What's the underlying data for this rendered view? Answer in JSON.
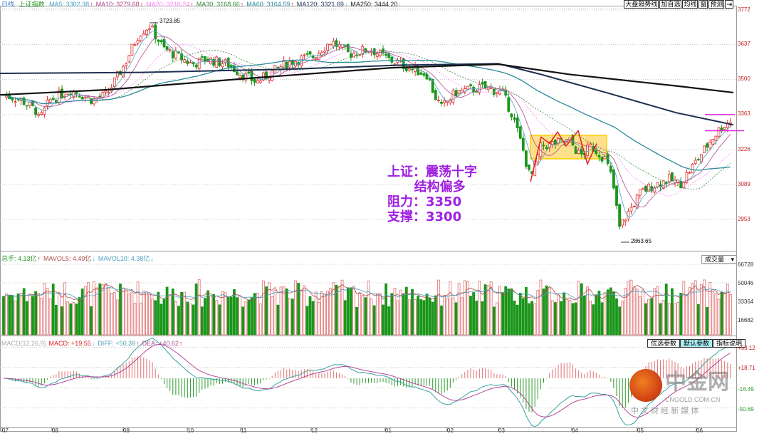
{
  "header": {
    "period": "日线",
    "index_name": "上证指数",
    "ma": [
      {
        "label": "MA5: 3302.38",
        "trend": "up",
        "color": "#4aa0c0"
      },
      {
        "label": "MA10: 3279.68",
        "trend": "up",
        "color": "#b04a8a"
      },
      {
        "label": "MA20: 3216.24",
        "trend": "up",
        "color": "#ff80ff"
      },
      {
        "label": "MA30: 3168.66",
        "trend": "up",
        "color": "#3a8a3a"
      },
      {
        "label": "MA60: 3164.59",
        "trend": "up",
        "color": "#2a8a9a"
      },
      {
        "label": "MA120: 3321.69",
        "trend": "down",
        "color": "#1e3050"
      },
      {
        "label": "MA250: 3444.20",
        "trend": "down",
        "color": "#222222"
      }
    ],
    "arrow_up": "↑",
    "arrow_down": "↓"
  },
  "toolbar": {
    "buttons": [
      "大盘趋势线",
      "加自选",
      "均线",
      "窗",
      "预测"
    ],
    "pin_icon": "⇥"
  },
  "price_axis": [
    "3772",
    "3637",
    "3500",
    "3363",
    "3226",
    "3089",
    "2953"
  ],
  "annotations": {
    "high": "3723.85",
    "low": "2863.65",
    "note": [
      "上证：震荡十字",
      "      结构偏多",
      "阻力：3350",
      "支撑：3300"
    ]
  },
  "volume": {
    "header": [
      {
        "label": "总手: 4.13亿",
        "trend": "up",
        "color": "#2a9a2a"
      },
      {
        "label": "MAVOL5: 4.49亿",
        "trend": "down",
        "color": "#b04a4a"
      },
      {
        "label": "MAVOL10: 4.38亿",
        "trend": "down",
        "color": "#4aa0c0"
      }
    ],
    "selector": "成交量",
    "axis": [
      "66728",
      "50046",
      "33364",
      "16682"
    ]
  },
  "macd": {
    "header": [
      {
        "label": "MACD(12,26,9)",
        "color": "#aaaaaa"
      },
      {
        "label": "MACD: +19.55",
        "trend": "down",
        "color": "#e02020"
      },
      {
        "label": "DIFF: +50.39",
        "trend": "up",
        "color": "#4aa0c0"
      },
      {
        "label": "DEA: +40.62",
        "trend": "up",
        "color": "#b04a9a"
      }
    ],
    "buttons": [
      "优选参数",
      "默认参数",
      "指标说明"
    ],
    "axis": [
      "+53.12",
      "+18.71",
      "-16.49",
      "-50.69"
    ]
  },
  "months": [
    "07",
    "08",
    "09",
    "10",
    "11",
    "12",
    "01",
    "02",
    "03",
    "04",
    "05",
    "06"
  ],
  "watermark": {
    "brand": "中金网",
    "domain": "CNGOLD.COM.CN",
    "tagline": "中 文 财 经 新 媒 体"
  },
  "colors": {
    "up": "#e03030",
    "down": "#1a961a",
    "box": "#ffe08a",
    "box_edge": "#ffd000",
    "resist": "#e020e0"
  },
  "chart_data": {
    "type": "candlestick",
    "title": "上证指数",
    "ylim": [
      2863.65,
      3772
    ],
    "price_path": [
      [
        "07",
        3440
      ],
      [
        "07",
        3380
      ],
      [
        "08",
        3420
      ],
      [
        "08",
        3440
      ],
      [
        "09",
        3560
      ],
      [
        "09",
        3710
      ],
      [
        "10",
        3590
      ],
      [
        "10",
        3580
      ],
      [
        "11",
        3520
      ],
      [
        "11",
        3490
      ],
      [
        "12",
        3580
      ],
      [
        "12",
        3650
      ],
      [
        "01",
        3620
      ],
      [
        "01",
        3540
      ],
      [
        "02",
        3440
      ],
      [
        "02",
        3450
      ],
      [
        "03",
        3450
      ],
      [
        "03",
        3110
      ],
      [
        "03",
        3240
      ],
      [
        "04",
        3260
      ],
      [
        "04",
        3200
      ],
      [
        "04",
        3190
      ],
      [
        "05",
        2920
      ],
      [
        "05",
        3060
      ],
      [
        "05",
        3110
      ],
      [
        "06",
        3190
      ],
      [
        "06",
        3270
      ],
      [
        "06",
        3340
      ]
    ],
    "high": 3723.85,
    "low": 2863.65
  }
}
